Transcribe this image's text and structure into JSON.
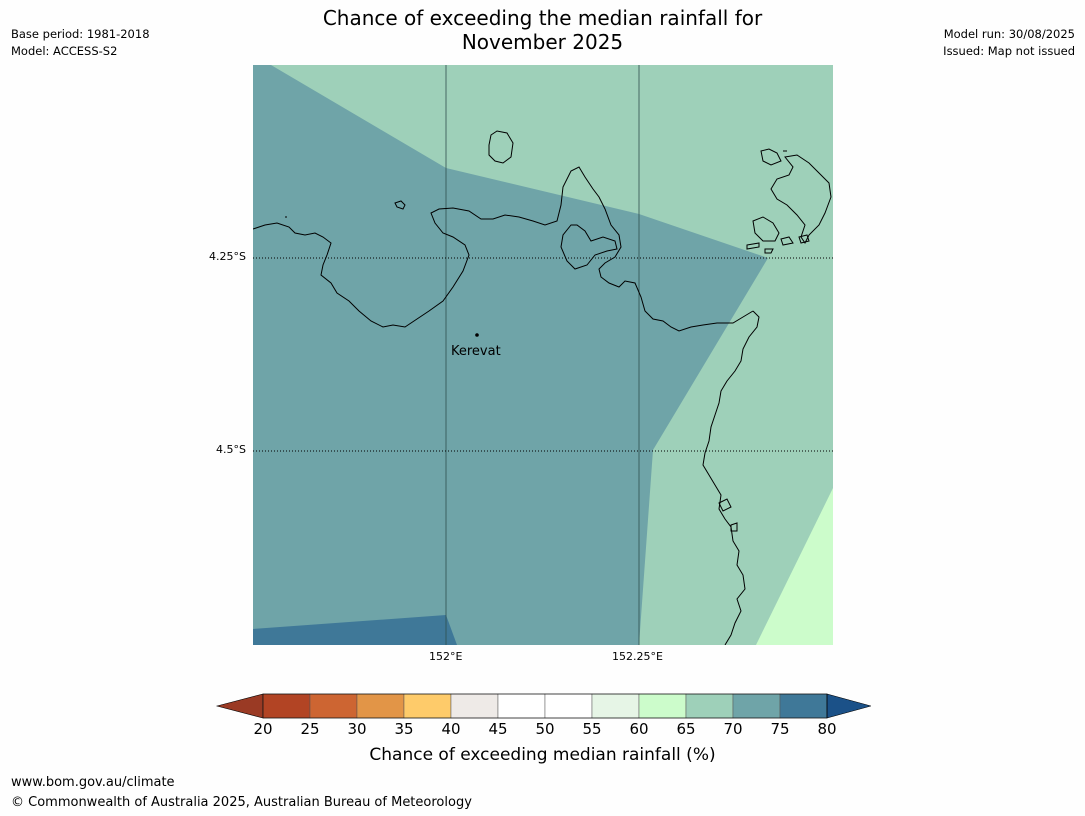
{
  "header": {
    "title_line1": "Chance of exceeding the median rainfall for",
    "title_line2": "November 2025",
    "base_period": "Base period: 1981-2018",
    "model": "Model: ACCESS-S2",
    "model_run": "Model run: 30/08/2025",
    "issued": "Issued: Map not issued"
  },
  "map": {
    "lat_ticks": [
      "4.25°S",
      "4.5°S"
    ],
    "lon_ticks": [
      "152°E",
      "152.25°E"
    ],
    "place": {
      "name": "Kerevat"
    },
    "region_colors": {
      "p60_65": "#ccfccb",
      "p65_70": "#9ed0b9",
      "p70_75": "#6fa4a8",
      "p75_80": "#3f7898"
    }
  },
  "colorbar": {
    "tick_labels": [
      "20",
      "25",
      "30",
      "35",
      "40",
      "45",
      "50",
      "55",
      "60",
      "65",
      "70",
      "75",
      "80"
    ],
    "colors": [
      "#b24424",
      "#cd6532",
      "#e29547",
      "#fecb6a",
      "#eeeae7",
      "#ffffff",
      "#ffffff",
      "#e6f5e6",
      "#ccfccb",
      "#9ed0b9",
      "#6fa4a8",
      "#3f7898"
    ],
    "under_color": "#9a3a24",
    "over_color": "#1b5188",
    "label": "Chance of exceeding median rainfall (%)"
  },
  "footer": {
    "url": "www.bom.gov.au/climate",
    "copyright": "© Commonwealth of Australia 2025, Australian Bureau of Meteorology"
  }
}
